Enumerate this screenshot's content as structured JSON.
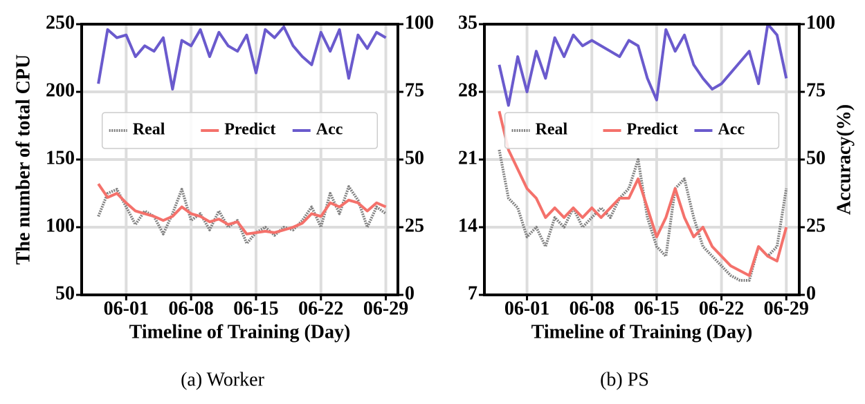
{
  "chart_data": [
    {
      "type": "line",
      "caption": "(a)  Worker",
      "xlabel": "Timeline of Training (Day)",
      "ylabel": "The number of total CPU",
      "x": [
        -3,
        -2,
        -1,
        0,
        1,
        2,
        3,
        4,
        5,
        6,
        7,
        8,
        9,
        10,
        11,
        12,
        13,
        14,
        15,
        16,
        17,
        18,
        19,
        20,
        21,
        22,
        23,
        24,
        25,
        26,
        27,
        28
      ],
      "xlim": [
        -4.8,
        29.3
      ],
      "xticks": [
        {
          "value": 0,
          "label": "06-01"
        },
        {
          "value": 7,
          "label": "06-08"
        },
        {
          "value": 14,
          "label": "06-15"
        },
        {
          "value": 21,
          "label": "06-22"
        },
        {
          "value": 28,
          "label": "06-29"
        }
      ],
      "ylim": [
        50,
        250
      ],
      "yticks": [
        50,
        100,
        150,
        200,
        250
      ],
      "y2lim": [
        0,
        100
      ],
      "y2ticks": [
        0,
        25,
        50,
        75,
        100
      ],
      "grid": true,
      "legend": "upper center",
      "series": [
        {
          "name": "Real",
          "color": "#808080",
          "linestyle": "dotted",
          "values": [
            108,
            125,
            128,
            115,
            102,
            112,
            108,
            95,
            110,
            128,
            105,
            110,
            98,
            112,
            100,
            105,
            88,
            96,
            100,
            94,
            100,
            98,
            105,
            115,
            100,
            125,
            110,
            130,
            120,
            100,
            115,
            110
          ]
        },
        {
          "name": "Predict",
          "color": "#f4716b",
          "linestyle": "solid",
          "values": [
            132,
            122,
            125,
            118,
            112,
            110,
            108,
            105,
            108,
            115,
            110,
            108,
            104,
            106,
            102,
            104,
            95,
            96,
            97,
            96,
            98,
            100,
            103,
            110,
            108,
            118,
            115,
            120,
            118,
            112,
            118,
            115
          ]
        },
        {
          "name": "Acc",
          "color": "#6a5acd",
          "linestyle": "solid",
          "axis": "y2",
          "values": [
            78,
            98,
            95,
            96,
            88,
            92,
            90,
            95,
            76,
            94,
            92,
            98,
            88,
            97,
            92,
            90,
            96,
            82,
            98,
            95,
            99,
            92,
            88,
            85,
            97,
            90,
            98,
            80,
            96,
            91,
            97,
            95
          ]
        }
      ]
    },
    {
      "type": "line",
      "caption": "(b)  PS",
      "xlabel": "Timeline of Training (Day)",
      "y2label": "Accuracy(%)",
      "x": [
        -3,
        -2,
        -1,
        0,
        1,
        2,
        3,
        4,
        5,
        6,
        7,
        8,
        9,
        10,
        11,
        12,
        13,
        14,
        15,
        16,
        17,
        18,
        19,
        20,
        21,
        22,
        23,
        24,
        25,
        26,
        27,
        28
      ],
      "xlim": [
        -4.6,
        29.4
      ],
      "xticks": [
        {
          "value": 0,
          "label": "06-01"
        },
        {
          "value": 7,
          "label": "06-08"
        },
        {
          "value": 14,
          "label": "06-15"
        },
        {
          "value": 21,
          "label": "06-22"
        },
        {
          "value": 28,
          "label": "06-29"
        }
      ],
      "ylim": [
        7,
        35
      ],
      "yticks": [
        7,
        14,
        21,
        28,
        35
      ],
      "y2lim": [
        0,
        100
      ],
      "y2ticks": [
        0,
        25,
        50,
        75,
        100
      ],
      "grid": true,
      "legend": "upper center",
      "series": [
        {
          "name": "Real",
          "color": "#808080",
          "linestyle": "dotted",
          "values": [
            22,
            17,
            16,
            13,
            14,
            12,
            15,
            14,
            16,
            14,
            15,
            16,
            15,
            17,
            18,
            21,
            15,
            12,
            11,
            18,
            19,
            15,
            12,
            11,
            10,
            9,
            8.5,
            8.5,
            12,
            11,
            12,
            18
          ]
        },
        {
          "name": "Predict",
          "color": "#f4716b",
          "linestyle": "solid",
          "values": [
            26,
            22,
            20,
            18,
            17,
            15,
            16,
            15,
            16,
            15,
            16,
            15,
            16,
            17,
            17,
            19,
            16,
            13,
            15,
            18,
            15,
            13,
            14,
            12,
            11,
            10,
            9.5,
            9,
            12,
            11,
            10.5,
            14
          ]
        },
        {
          "name": "Acc",
          "color": "#6a5acd",
          "linestyle": "solid",
          "axis": "y2",
          "values": [
            85,
            70,
            88,
            75,
            90,
            80,
            95,
            88,
            96,
            92,
            94,
            92,
            90,
            88,
            94,
            92,
            80,
            72,
            98,
            90,
            96,
            85,
            80,
            76,
            78,
            82,
            86,
            90,
            78,
            100,
            96,
            80
          ]
        }
      ]
    }
  ]
}
